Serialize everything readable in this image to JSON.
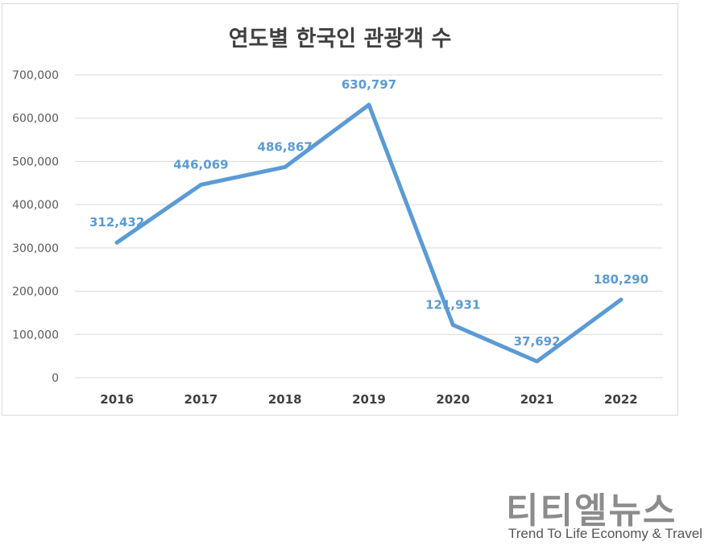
{
  "chart_data": {
    "type": "line",
    "title": "연도별 한국인 관광객 수",
    "categories": [
      "2016",
      "2017",
      "2018",
      "2019",
      "2020",
      "2021",
      "2022"
    ],
    "values": [
      312432,
      446069,
      486867,
      630797,
      121931,
      37692,
      180290
    ],
    "data_labels": [
      "312,432",
      "446,069",
      "486,867",
      "630,797",
      "121,931",
      "37,692",
      "180,290"
    ],
    "ylim": [
      0,
      700000
    ],
    "yticks": [
      "0",
      "100,000",
      "200,000",
      "300,000",
      "400,000",
      "500,000",
      "600,000",
      "700,000"
    ],
    "grid": true,
    "line_color": "#5b9bd5"
  },
  "brand": {
    "name": "티티엘뉴스",
    "tagline": "Trend To Life Economy & Travel"
  }
}
